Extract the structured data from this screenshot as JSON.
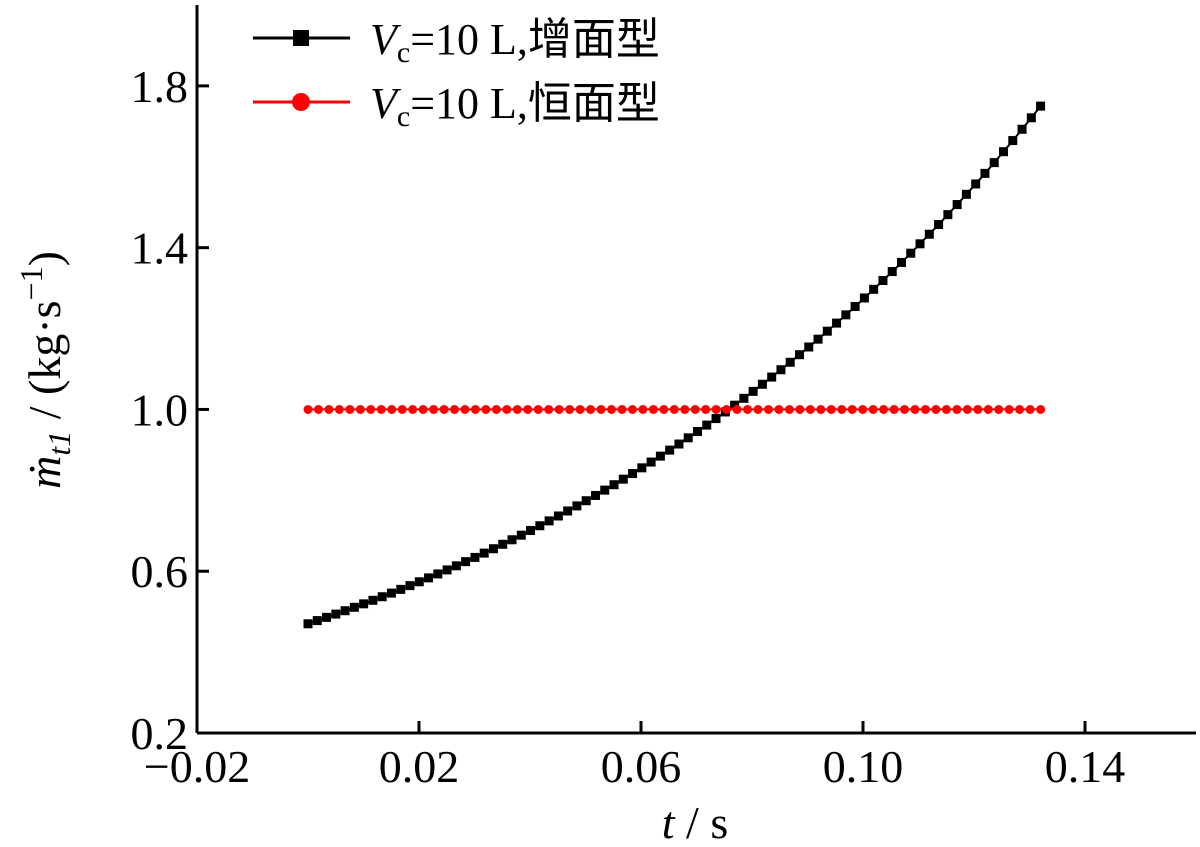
{
  "chart_data": {
    "type": "scatter",
    "title": "",
    "xlabel": {
      "symbol": "t",
      "unit": "s"
    },
    "ylabel": {
      "symbol": "ṁ",
      "subscript": "t1",
      "unit": "(kg·s",
      "unit_sup": "−1",
      "unit_close": ")"
    },
    "xlim": [
      -0.02,
      0.16
    ],
    "ylim": [
      0.2,
      2.0
    ],
    "xticks": [
      -0.02,
      0.02,
      0.06,
      0.1,
      0.14
    ],
    "xtick_labels": [
      "−0.02",
      "0.02",
      "0.06",
      "0.10",
      "0.14"
    ],
    "yticks": [
      0.2,
      0.6,
      1.0,
      1.4,
      1.8
    ],
    "ytick_labels": [
      "0.2",
      "0.6",
      "1.0",
      "1.4",
      "1.8"
    ],
    "grid": false,
    "legend_position": "top-left",
    "x": [
      0.0,
      0.132
    ],
    "series": [
      {
        "name_symbol": "V",
        "name_subscript": "c",
        "name_rest": "=10 L,增面型",
        "color": "#000000",
        "marker": "square",
        "x_start": 0.0,
        "x_end": 0.132,
        "points": 80,
        "y_start": 0.47,
        "y_end": 1.75
      },
      {
        "name_symbol": "V",
        "name_subscript": "c",
        "name_rest": "=10 L,恒面型",
        "color": "#ff0000",
        "marker": "circle",
        "x_start": 0.0,
        "x_end": 0.132,
        "points": 71,
        "y_start": 1.0,
        "y_end": 1.0
      }
    ]
  }
}
